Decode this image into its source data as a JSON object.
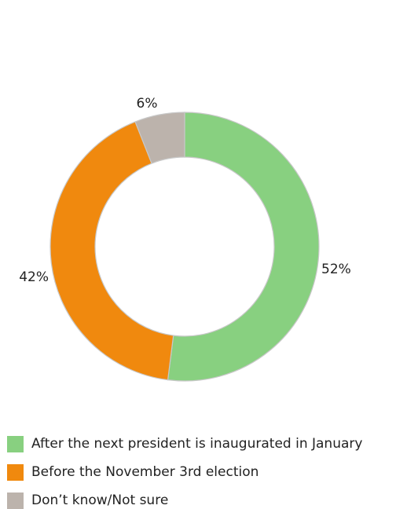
{
  "chart_data": {
    "type": "donut",
    "series": [
      {
        "name": "After the next president is inaugurated in January",
        "value": 52,
        "label": "52%",
        "color": "#88D080"
      },
      {
        "name": "Before the November 3rd election",
        "value": 42,
        "label": "42%",
        "color": "#F0890E"
      },
      {
        "name": "Don’t know/Not sure",
        "value": 6,
        "label": "6%",
        "color": "#BCB3AC"
      }
    ],
    "legend_position": "bottom-left",
    "start_angle": "12 o'clock",
    "direction": "clockwise"
  }
}
